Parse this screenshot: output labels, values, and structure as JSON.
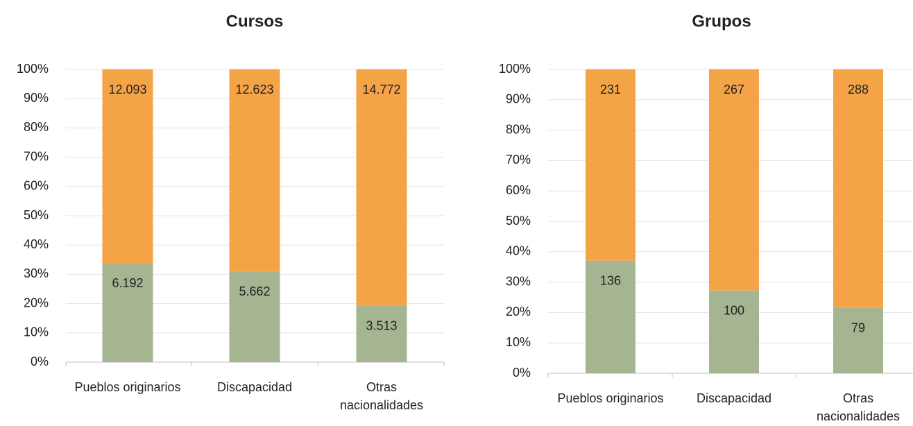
{
  "chart_data": [
    {
      "type": "bar",
      "stacking": "percent",
      "title": "Cursos",
      "categories": [
        "Pueblos originarios",
        "Discapacidad",
        "Otras nacionalidades"
      ],
      "series": [
        {
          "color": "#a5b592",
          "values": [
            6192,
            5662,
            3513
          ],
          "value_labels": [
            "6.192",
            "5.662",
            "3.513"
          ]
        },
        {
          "color": "#f4a446",
          "values": [
            12093,
            12623,
            14772
          ],
          "value_labels": [
            "12.093",
            "12.623",
            "14.772"
          ]
        }
      ],
      "ylim": [
        0,
        100
      ],
      "yticks": [
        {
          "value": 0,
          "label": "0%"
        },
        {
          "value": 10,
          "label": "10%"
        },
        {
          "value": 20,
          "label": "20%"
        },
        {
          "value": 30,
          "label": "30%"
        },
        {
          "value": 40,
          "label": "40%"
        },
        {
          "value": 50,
          "label": "50%"
        },
        {
          "value": 60,
          "label": "60%"
        },
        {
          "value": 70,
          "label": "70%"
        },
        {
          "value": 80,
          "label": "80%"
        },
        {
          "value": 90,
          "label": "90%"
        },
        {
          "value": 100,
          "label": "100%"
        }
      ],
      "grid": true
    },
    {
      "type": "bar",
      "stacking": "percent",
      "title": "Grupos",
      "categories": [
        "Pueblos originarios",
        "Discapacidad",
        "Otras nacionalidades"
      ],
      "series": [
        {
          "color": "#a5b592",
          "values": [
            136,
            100,
            79
          ]
        },
        {
          "color": "#f4a446",
          "values": [
            231,
            267,
            288
          ]
        }
      ],
      "ylim": [
        0,
        100
      ],
      "yticks": [
        {
          "value": 0,
          "label": "0%"
        },
        {
          "value": 10,
          "label": "10%"
        },
        {
          "value": 20,
          "label": "20%"
        },
        {
          "value": 30,
          "label": "30%"
        },
        {
          "value": 40,
          "label": "40%"
        },
        {
          "value": 50,
          "label": "50%"
        },
        {
          "value": 60,
          "label": "60%"
        },
        {
          "value": 70,
          "label": "70%"
        },
        {
          "value": 80,
          "label": "80%"
        },
        {
          "value": 90,
          "label": "90%"
        },
        {
          "value": 100,
          "label": "100%"
        }
      ],
      "grid": true
    }
  ]
}
